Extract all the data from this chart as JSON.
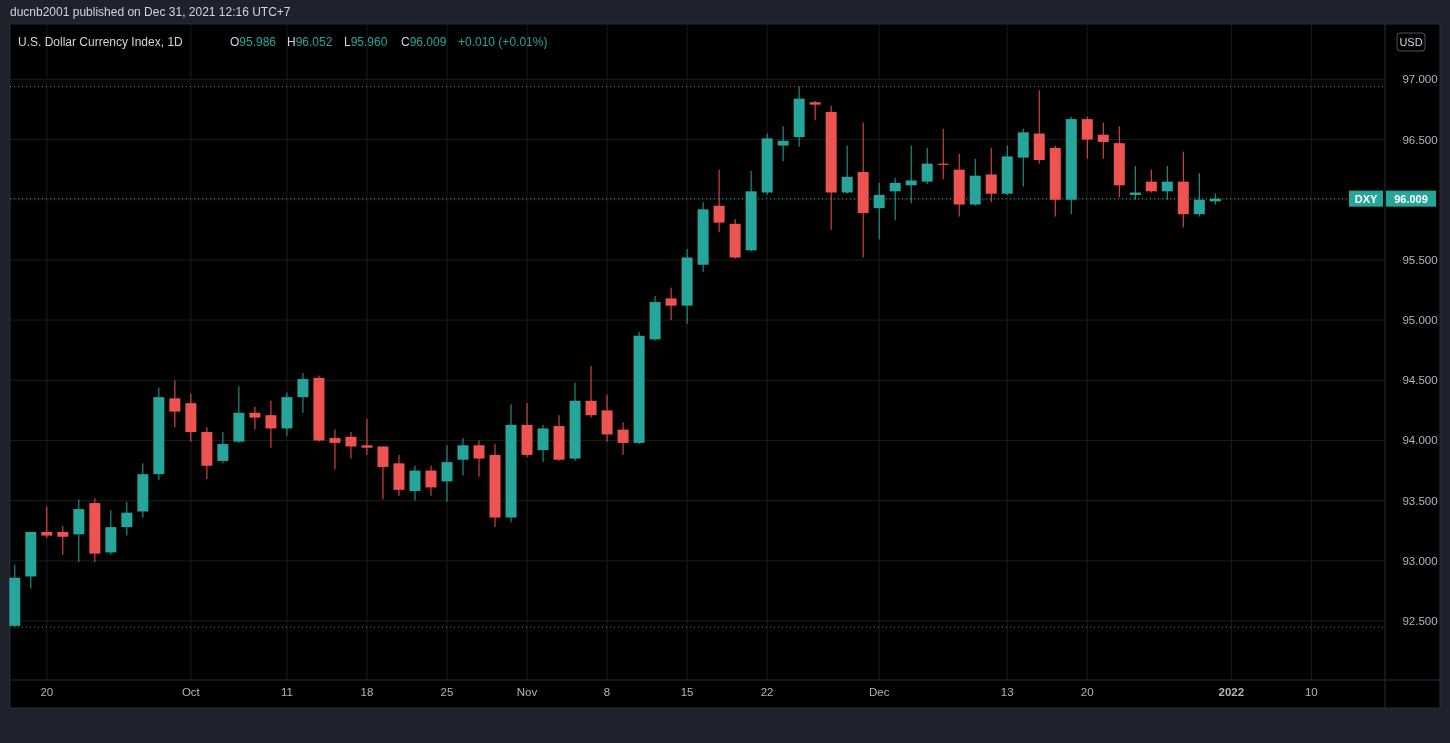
{
  "chart_data": {
    "type": "candlestick",
    "title": "U.S. Dollar Currency Index, 1D",
    "ylabel": "USD",
    "annotations": [
      "ducnb2001 published on Dec 31, 2021 12:16 UTC+7",
      "O95.986",
      "H96.052",
      "L95.960",
      "C96.009",
      "+0.010 (+0.01%)",
      "96.009"
    ],
    "categories": [
      null,
      null,
      "20",
      null,
      null,
      null,
      null,
      null,
      null,
      null,
      null,
      "Oct",
      null,
      null,
      null,
      null,
      null,
      "11",
      null,
      null,
      null,
      null,
      "18",
      null,
      null,
      null,
      null,
      "25",
      null,
      null,
      null,
      null,
      "Nov",
      null,
      null,
      null,
      null,
      "8",
      null,
      null,
      null,
      null,
      "15",
      null,
      null,
      null,
      null,
      "22",
      null,
      null,
      null,
      null,
      null,
      null,
      "Dec",
      null,
      null,
      null,
      null,
      null,
      null,
      null,
      "13",
      null,
      null,
      null,
      null,
      "20",
      null,
      null,
      null,
      null,
      null,
      null,
      null,
      null,
      "2022",
      null,
      null,
      null,
      null,
      "10",
      null,
      null,
      null,
      null
    ],
    "ohlc": [
      [
        92.46,
        92.97,
        92.45,
        92.86
      ],
      [
        92.87,
        93.24,
        92.77,
        93.24
      ],
      [
        93.24,
        93.45,
        93.19,
        93.21
      ],
      [
        93.24,
        93.29,
        93.05,
        93.2
      ],
      [
        93.22,
        93.51,
        92.99,
        93.43
      ],
      [
        93.48,
        93.52,
        92.99,
        93.06
      ],
      [
        93.07,
        93.42,
        93.05,
        93.28
      ],
      [
        93.28,
        93.49,
        93.21,
        93.4
      ],
      [
        93.41,
        93.81,
        93.36,
        93.72
      ],
      [
        93.72,
        94.44,
        93.67,
        94.36
      ],
      [
        94.35,
        94.5,
        94.11,
        94.24
      ],
      [
        94.31,
        94.39,
        93.99,
        94.07
      ],
      [
        94.07,
        94.11,
        93.68,
        93.79
      ],
      [
        93.83,
        94.07,
        93.81,
        93.97
      ],
      [
        93.99,
        94.45,
        93.98,
        94.23
      ],
      [
        94.23,
        94.28,
        94.09,
        94.19
      ],
      [
        94.21,
        94.33,
        93.94,
        94.1
      ],
      [
        94.1,
        94.4,
        94.04,
        94.36
      ],
      [
        94.36,
        94.56,
        94.23,
        94.51
      ],
      [
        94.52,
        94.54,
        93.99,
        94.0
      ],
      [
        94.02,
        94.09,
        93.76,
        93.98
      ],
      [
        94.03,
        94.07,
        93.85,
        93.95
      ],
      [
        93.96,
        94.18,
        93.88,
        93.94
      ],
      [
        93.95,
        93.95,
        93.51,
        93.78
      ],
      [
        93.81,
        93.88,
        93.54,
        93.59
      ],
      [
        93.58,
        93.79,
        93.5,
        93.75
      ],
      [
        93.75,
        93.79,
        93.54,
        93.61
      ],
      [
        93.66,
        93.96,
        93.49,
        93.82
      ],
      [
        93.84,
        94.02,
        93.71,
        93.96
      ],
      [
        93.96,
        94.0,
        93.7,
        93.85
      ],
      [
        93.88,
        93.97,
        93.28,
        93.36
      ],
      [
        93.36,
        94.3,
        93.32,
        94.13
      ],
      [
        94.13,
        94.31,
        93.86,
        93.88
      ],
      [
        93.92,
        94.13,
        93.82,
        94.1
      ],
      [
        94.12,
        94.21,
        93.83,
        93.84
      ],
      [
        93.85,
        94.48,
        93.83,
        94.33
      ],
      [
        94.33,
        94.62,
        94.19,
        94.21
      ],
      [
        94.25,
        94.38,
        93.99,
        94.05
      ],
      [
        94.09,
        94.15,
        93.88,
        93.98
      ],
      [
        93.98,
        94.9,
        93.97,
        94.87
      ],
      [
        94.84,
        95.2,
        94.83,
        95.15
      ],
      [
        95.18,
        95.27,
        95.0,
        95.12
      ],
      [
        95.12,
        95.59,
        94.97,
        95.52
      ],
      [
        95.46,
        95.98,
        95.4,
        95.92
      ],
      [
        95.95,
        96.25,
        95.73,
        95.81
      ],
      [
        95.8,
        95.84,
        95.51,
        95.52
      ],
      [
        95.58,
        96.24,
        95.57,
        96.07
      ],
      [
        96.06,
        96.55,
        96.04,
        96.51
      ],
      [
        96.45,
        96.61,
        96.32,
        96.49
      ],
      [
        96.52,
        96.94,
        96.44,
        96.84
      ],
      [
        96.81,
        96.82,
        96.66,
        96.79
      ],
      [
        96.73,
        96.78,
        95.75,
        96.06
      ],
      [
        96.06,
        96.45,
        96.05,
        96.19
      ],
      [
        96.23,
        96.64,
        95.52,
        95.89
      ],
      [
        95.93,
        96.14,
        95.67,
        96.04
      ],
      [
        96.07,
        96.18,
        95.83,
        96.14
      ],
      [
        96.12,
        96.45,
        95.97,
        96.16
      ],
      [
        96.15,
        96.43,
        96.13,
        96.3
      ],
      [
        96.3,
        96.59,
        96.17,
        96.29
      ],
      [
        96.25,
        96.38,
        95.86,
        95.96
      ],
      [
        95.96,
        96.34,
        95.95,
        96.2
      ],
      [
        96.21,
        96.43,
        95.98,
        96.05
      ],
      [
        96.05,
        96.45,
        96.04,
        96.36
      ],
      [
        96.35,
        96.59,
        96.11,
        96.56
      ],
      [
        96.55,
        96.91,
        96.3,
        96.33
      ],
      [
        96.43,
        96.45,
        95.86,
        96.0
      ],
      [
        96.0,
        96.69,
        95.88,
        96.67
      ],
      [
        96.67,
        96.69,
        96.34,
        96.5
      ],
      [
        96.54,
        96.64,
        96.34,
        96.48
      ],
      [
        96.47,
        96.61,
        96.02,
        96.12
      ],
      [
        96.04,
        96.28,
        96.0,
        96.06
      ],
      [
        96.15,
        96.25,
        96.06,
        96.07
      ],
      [
        96.07,
        96.28,
        96.0,
        96.15
      ],
      [
        96.15,
        96.4,
        95.77,
        95.88
      ],
      [
        95.88,
        96.22,
        95.86,
        96.0
      ],
      [
        95.986,
        96.052,
        95.96,
        96.009
      ],
      null,
      null,
      null,
      null,
      null,
      null,
      null,
      null,
      null,
      null
    ],
    "colors": [
      "#26a69a",
      "#26a69a",
      "#ef5350",
      "#ef5350",
      "#26a69a",
      "#ef5350",
      "#26a69a",
      "#26a69a",
      "#26a69a",
      "#26a69a",
      "#ef5350",
      "#ef5350",
      "#ef5350",
      "#26a69a",
      "#26a69a",
      "#ef5350",
      "#ef5350",
      "#26a69a",
      "#26a69a",
      "#ef5350",
      "#ef5350",
      "#ef5350",
      "#ef5350",
      "#ef5350",
      "#ef5350",
      "#26a69a",
      "#ef5350",
      "#26a69a",
      "#26a69a",
      "#ef5350",
      "#ef5350",
      "#26a69a",
      "#ef5350",
      "#26a69a",
      "#ef5350",
      "#26a69a",
      "#ef5350",
      "#ef5350",
      "#ef5350",
      "#26a69a",
      "#26a69a",
      "#ef5350",
      "#26a69a",
      "#26a69a",
      "#ef5350",
      "#ef5350",
      "#26a69a",
      "#26a69a",
      "#26a69a",
      "#26a69a",
      "#ef5350",
      "#ef5350",
      "#26a69a",
      "#ef5350",
      "#26a69a",
      "#26a69a",
      "#26a69a",
      "#26a69a",
      "#ef5350",
      "#ef5350",
      "#26a69a",
      "#ef5350",
      "#26a69a",
      "#26a69a",
      "#ef5350",
      "#ef5350",
      "#26a69a",
      "#ef5350",
      "#ef5350",
      "#ef5350",
      "#26a69a",
      "#ef5350",
      "#26a69a",
      "#ef5350",
      "#26a69a",
      "#26a69a",
      null,
      null,
      null,
      null,
      null,
      null,
      null,
      null,
      null,
      null
    ],
    "ylim": [
      92.01,
      97.46
    ],
    "yticks": [
      {
        "value": 92.5,
        "label": "92.500"
      },
      {
        "value": 93,
        "label": "93.000"
      },
      {
        "value": 93.5,
        "label": "93.500"
      },
      {
        "value": 94,
        "label": "94.000"
      },
      {
        "value": 94.5,
        "label": "94.500"
      },
      {
        "value": 95,
        "label": "95.000"
      },
      {
        "value": 95.5,
        "label": "95.500"
      },
      {
        "value": 96,
        "label": null
      },
      {
        "value": 96.5,
        "label": "96.500"
      },
      {
        "value": 97,
        "label": "97.000"
      }
    ],
    "grid": true,
    "ref_lines": [
      {
        "axis": "y",
        "value": 96.94,
        "color": "#787b86",
        "line_style": "dotted"
      },
      {
        "axis": "y",
        "value": 92.45,
        "color": "#787b86",
        "line_style": "dotted"
      },
      {
        "axis": "y",
        "value": 96.009,
        "label": "DXY",
        "color": "#26a69a",
        "line_style": "dotted"
      }
    ]
  }
}
